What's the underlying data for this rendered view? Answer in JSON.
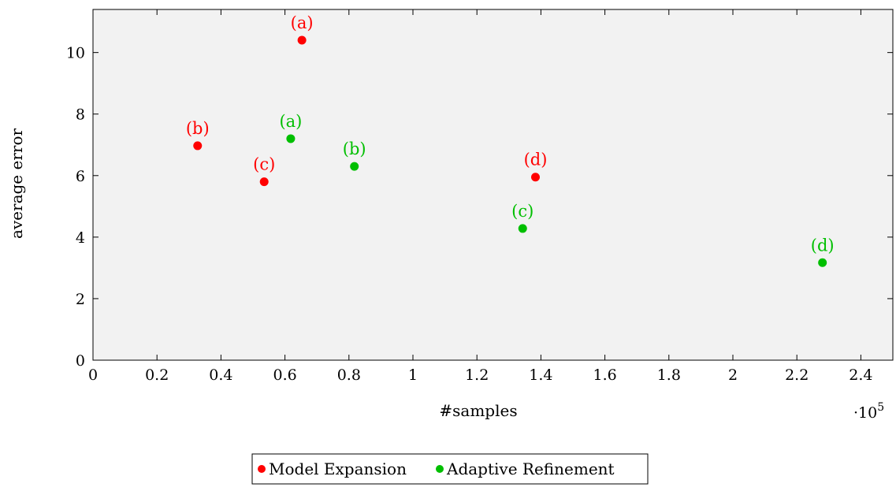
{
  "chart_data": {
    "type": "scatter",
    "title": "",
    "xlabel": "#samples",
    "ylabel": "average error",
    "x_multiplier_label": "·10",
    "x_multiplier_exp": "5",
    "xlim": [
      0,
      2.5
    ],
    "ylim": [
      0,
      11.4
    ],
    "xticks": [
      0,
      0.2,
      0.4,
      0.6,
      0.8,
      1,
      1.2,
      1.4,
      1.6,
      1.8,
      2,
      2.2,
      2.4
    ],
    "xtick_labels": [
      "0",
      "0.2",
      "0.4",
      "0.6",
      "0.8",
      "1",
      "1.2",
      "1.4",
      "1.6",
      "1.8",
      "2",
      "2.2",
      "2.4"
    ],
    "yticks": [
      0,
      2,
      4,
      6,
      8,
      10
    ],
    "ytick_labels": [
      "0",
      "2",
      "4",
      "6",
      "8",
      "10"
    ],
    "background": "#f2f2f2",
    "grid": false,
    "legend_position": "bottom-center",
    "series": [
      {
        "name": "Model Expansion",
        "color": "#ff0000",
        "points": [
          {
            "x": 0.653,
            "y": 10.4,
            "label": "(a)"
          },
          {
            "x": 0.327,
            "y": 6.97,
            "label": "(b)"
          },
          {
            "x": 0.535,
            "y": 5.8,
            "label": "(c)"
          },
          {
            "x": 1.383,
            "y": 5.95,
            "label": "(d)"
          }
        ]
      },
      {
        "name": "Adaptive Refinement",
        "color": "#00bf00",
        "points": [
          {
            "x": 0.618,
            "y": 7.2,
            "label": "(a)"
          },
          {
            "x": 0.817,
            "y": 6.3,
            "label": "(b)"
          },
          {
            "x": 1.343,
            "y": 4.28,
            "label": "(c)"
          },
          {
            "x": 2.28,
            "y": 3.17,
            "label": "(d)"
          }
        ]
      }
    ]
  }
}
